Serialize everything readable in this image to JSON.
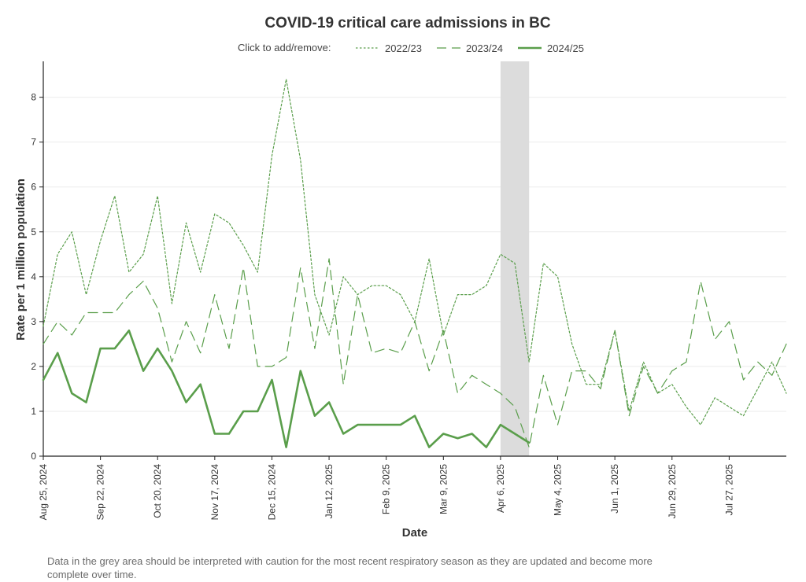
{
  "chart_data": {
    "type": "line",
    "title": "COVID-19 critical care admissions in BC",
    "legend_prompt": "Click to add/remove:",
    "legend_placement": "top-center",
    "xlabel": "Date",
    "ylabel": "Rate per 1 million population",
    "ylim": [
      0,
      8.8
    ],
    "yticks": [
      0,
      1,
      2,
      3,
      4,
      5,
      6,
      7,
      8
    ],
    "grid": true,
    "x_range": [
      "2024-08-25",
      "2025-08-24"
    ],
    "x_ticks": [
      {
        "date": "2024-08-25",
        "label": "Aug 25, 2024"
      },
      {
        "date": "2024-09-22",
        "label": "Sep 22, 2024"
      },
      {
        "date": "2024-10-20",
        "label": "Oct 20, 2024"
      },
      {
        "date": "2024-11-17",
        "label": "Nov 17, 2024"
      },
      {
        "date": "2024-12-15",
        "label": "Dec 15, 2024"
      },
      {
        "date": "2025-01-12",
        "label": "Jan 12, 2025"
      },
      {
        "date": "2025-02-09",
        "label": "Feb 9, 2025"
      },
      {
        "date": "2025-03-09",
        "label": "Mar 9, 2025"
      },
      {
        "date": "2025-04-06",
        "label": "Apr 6, 2025"
      },
      {
        "date": "2025-05-04",
        "label": "May 4, 2025"
      },
      {
        "date": "2025-06-01",
        "label": "Jun 1, 2025"
      },
      {
        "date": "2025-06-29",
        "label": "Jun 29, 2025"
      },
      {
        "date": "2025-07-27",
        "label": "Jul 27, 2025"
      }
    ],
    "shaded_region": [
      "2025-04-06",
      "2025-04-20"
    ],
    "x": [
      "2024-08-25",
      "2024-09-01",
      "2024-09-08",
      "2024-09-15",
      "2024-09-22",
      "2024-09-29",
      "2024-10-06",
      "2024-10-13",
      "2024-10-20",
      "2024-10-27",
      "2024-11-03",
      "2024-11-10",
      "2024-11-17",
      "2024-11-24",
      "2024-12-01",
      "2024-12-08",
      "2024-12-15",
      "2024-12-22",
      "2024-12-29",
      "2025-01-05",
      "2025-01-12",
      "2025-01-19",
      "2025-01-26",
      "2025-02-02",
      "2025-02-09",
      "2025-02-16",
      "2025-02-23",
      "2025-03-02",
      "2025-03-09",
      "2025-03-16",
      "2025-03-23",
      "2025-03-30",
      "2025-04-06",
      "2025-04-13",
      "2025-04-20",
      "2025-04-27",
      "2025-05-04",
      "2025-05-11",
      "2025-05-18",
      "2025-05-25",
      "2025-06-01",
      "2025-06-08",
      "2025-06-15",
      "2025-06-22",
      "2025-06-29",
      "2025-07-06",
      "2025-07-13",
      "2025-07-20",
      "2025-07-27",
      "2025-08-03",
      "2025-08-10",
      "2025-08-17",
      "2025-08-24"
    ],
    "series": [
      {
        "name": "2022/23",
        "style": "dotted",
        "color": "#5a9e4b",
        "values": [
          2.9,
          4.5,
          5.0,
          3.6,
          4.8,
          5.8,
          4.1,
          4.5,
          5.8,
          3.4,
          5.2,
          4.1,
          5.4,
          5.2,
          4.7,
          4.1,
          6.7,
          8.4,
          6.6,
          3.6,
          2.7,
          4.0,
          3.6,
          3.8,
          3.8,
          3.6,
          3.0,
          4.4,
          2.7,
          3.6,
          3.6,
          3.8,
          4.5,
          4.3,
          2.1,
          4.3,
          4.0,
          2.5,
          1.6,
          1.6,
          2.8,
          1.0,
          2.1,
          1.4,
          1.6,
          1.1,
          0.7,
          1.3,
          1.1,
          0.9,
          1.5,
          2.1,
          1.4
        ]
      },
      {
        "name": "2023/24",
        "style": "dashed",
        "color": "#5a9e4b",
        "values": [
          2.5,
          3.0,
          2.7,
          3.2,
          3.2,
          3.2,
          3.6,
          3.9,
          3.3,
          2.1,
          3.0,
          2.3,
          3.6,
          2.4,
          4.2,
          2.0,
          2.0,
          2.2,
          4.2,
          2.4,
          4.4,
          1.6,
          3.6,
          2.3,
          2.4,
          2.3,
          3.0,
          1.9,
          2.8,
          1.4,
          1.8,
          1.6,
          1.4,
          1.1,
          0.2,
          1.8,
          0.7,
          1.9,
          1.9,
          1.5,
          2.8,
          0.9,
          2.0,
          1.4,
          1.9,
          2.1,
          3.9,
          2.6,
          3.0,
          1.7,
          2.1,
          1.8,
          2.5
        ]
      },
      {
        "name": "2024/25",
        "style": "solid",
        "color": "#5a9e4b",
        "values": [
          1.7,
          2.3,
          1.4,
          1.2,
          2.4,
          2.4,
          2.8,
          1.9,
          2.4,
          1.9,
          1.2,
          1.6,
          0.5,
          0.5,
          1.0,
          1.0,
          1.7,
          0.2,
          1.9,
          0.9,
          1.2,
          0.5,
          0.7,
          0.7,
          0.7,
          0.7,
          0.9,
          0.2,
          0.5,
          0.4,
          0.5,
          0.2,
          0.7,
          0.5,
          0.3,
          null,
          null,
          null,
          null,
          null,
          null,
          null,
          null,
          null,
          null,
          null,
          null,
          null,
          null,
          null,
          null,
          null,
          null
        ]
      }
    ]
  },
  "footnote": "Data in the grey area should be interpreted with caution for the most recent respiratory season as they are updated and become more complete over time."
}
